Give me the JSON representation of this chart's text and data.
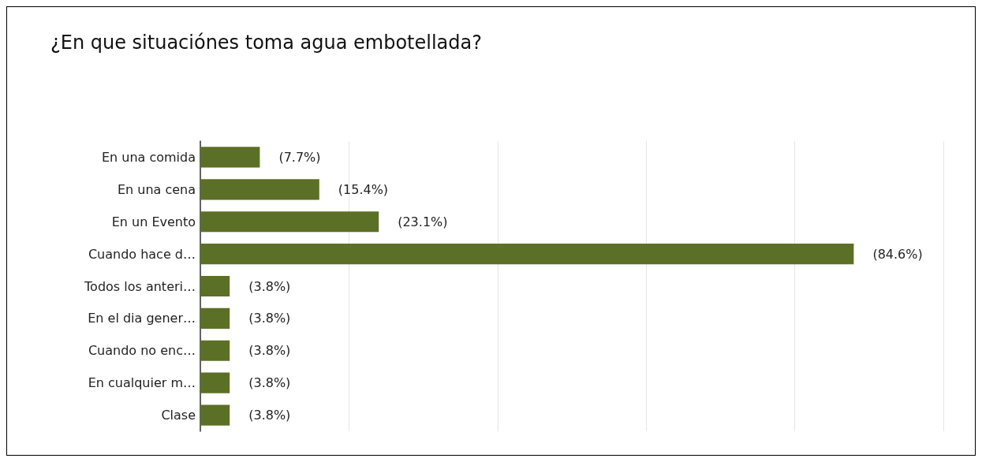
{
  "chart_data": {
    "type": "bar",
    "orientation": "horizontal",
    "title": "¿En que situaciónes toma agua embotellada?",
    "categories": [
      "En una comida",
      "En una cena",
      "En un Evento",
      "Cuando hace d…",
      "Todos los anteri…",
      "En el dia gener…",
      "Cuando no enc…",
      "En cualquier m…",
      "Clase"
    ],
    "values": [
      7.7,
      15.4,
      23.1,
      84.6,
      3.8,
      3.8,
      3.8,
      3.8,
      3.8
    ],
    "value_labels": [
      "(7.7%)",
      "(15.4%)",
      "(23.1%)",
      "(84.6%)",
      "(3.8%)",
      "(3.8%)",
      "(3.8%)",
      "(3.8%)",
      "(3.8%)"
    ],
    "color": "#5b7026",
    "xlim": [
      0,
      96.2
    ],
    "xticks": [
      {
        "value": 0,
        "label": null
      },
      {
        "value": 19.2,
        "label": null
      },
      {
        "value": 38.5,
        "label": null
      },
      {
        "value": 57.7,
        "label": null
      },
      {
        "value": 76.9,
        "label": null
      },
      {
        "value": 96.2,
        "label": null
      }
    ],
    "tick_labels": "y",
    "grid": "x"
  }
}
